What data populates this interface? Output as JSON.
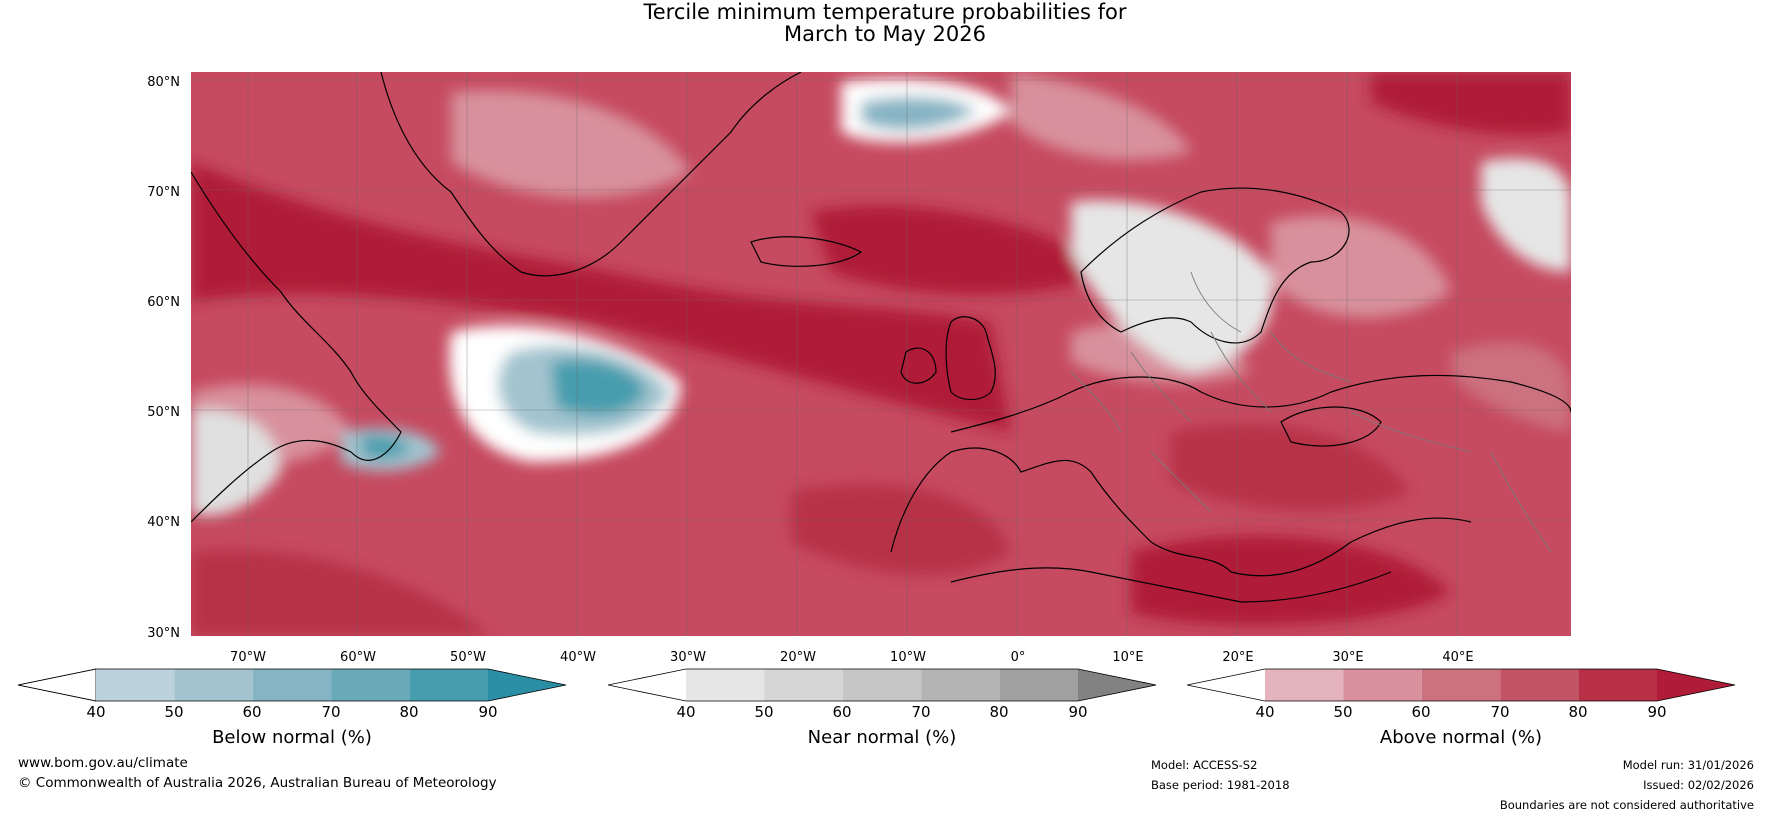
{
  "title": {
    "line1": "Tercile minimum temperature probabilities for",
    "line2": "March to May 2026"
  },
  "map": {
    "lat_labels": [
      "80°N",
      "70°N",
      "60°N",
      "50°N",
      "40°N",
      "30°N"
    ],
    "lon_labels": [
      "70°W",
      "60°W",
      "50°W",
      "40°W",
      "30°W",
      "20°W",
      "10°W",
      "0°",
      "10°E",
      "20°E",
      "30°E",
      "40°E"
    ]
  },
  "colorbars": [
    {
      "label": "Below normal (%)",
      "ticks": [
        "40",
        "50",
        "60",
        "70",
        "80",
        "90"
      ],
      "colors": [
        "#ffffff",
        "#bcd3dc",
        "#a3c4cf",
        "#87b4c4",
        "#6aa9b8",
        "#479dae",
        "#2a8fa5"
      ]
    },
    {
      "label": "Near normal (%)",
      "ticks": [
        "40",
        "50",
        "60",
        "70",
        "80",
        "90"
      ],
      "colors": [
        "#ffffff",
        "#e6e6e6",
        "#d6d6d6",
        "#c6c6c6",
        "#b4b4b4",
        "#a0a0a0",
        "#828282"
      ]
    },
    {
      "label": "Above normal (%)",
      "ticks": [
        "40",
        "50",
        "60",
        "70",
        "80",
        "90"
      ],
      "colors": [
        "#ffffff",
        "#e3b4bc",
        "#d8919c",
        "#cc717f",
        "#c25466",
        "#b83046",
        "#b01c38"
      ]
    }
  ],
  "footer": {
    "url": "www.bom.gov.au/climate",
    "copyright": "© Commonwealth of Australia 2026, Australian Bureau of Meteorology",
    "model": "Model: ACCESS-S2",
    "base_period": "Base period: 1981-2018",
    "model_run": "Model run: 31/01/2026",
    "issued": "Issued: 02/02/2026",
    "disclaimer": "Boundaries are not considered authoritative"
  }
}
